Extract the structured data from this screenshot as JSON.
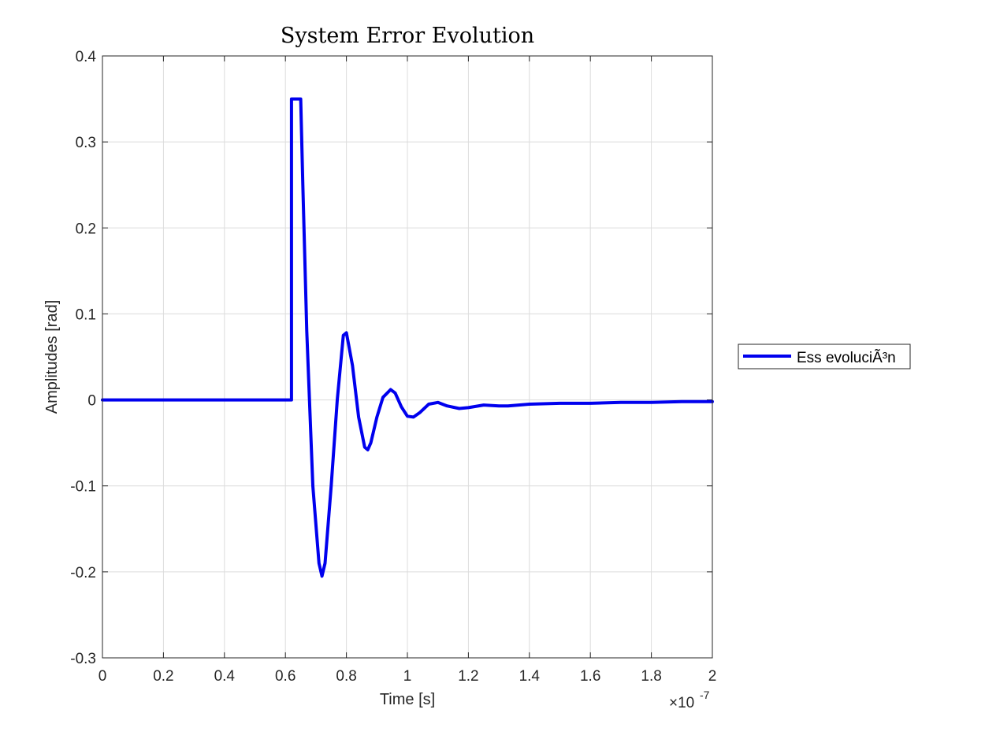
{
  "chart_data": {
    "type": "line",
    "title": "System Error Evolution",
    "xlabel": "Time [s]",
    "ylabel": "Amplitudes [rad]",
    "x_exponent_label": "×10",
    "x_exponent_power": "-7",
    "xlim": [
      0,
      2
    ],
    "ylim": [
      -0.3,
      0.4
    ],
    "grid": true,
    "legend_position": "outside-right",
    "x_ticks": [
      "0",
      "0.2",
      "0.4",
      "0.6",
      "0.8",
      "1",
      "1.2",
      "1.4",
      "1.6",
      "1.8",
      "2"
    ],
    "y_ticks": [
      "0.4",
      "0.3",
      "0.2",
      "0.1",
      "0",
      "-0.1",
      "-0.2",
      "-0.3"
    ],
    "x_tick_values": [
      0,
      0.2,
      0.4,
      0.6,
      0.8,
      1.0,
      1.2,
      1.4,
      1.6,
      1.8,
      2.0
    ],
    "y_tick_values": [
      0.4,
      0.3,
      0.2,
      0.1,
      0,
      -0.1,
      -0.2,
      -0.3
    ],
    "series": [
      {
        "name": "Ess evoluciÃ³n",
        "color": "#0000ee",
        "x": [
          0,
          0.62,
          0.62,
          0.625,
          0.625,
          0.64,
          0.65,
          0.657,
          0.67,
          0.69,
          0.71,
          0.72,
          0.73,
          0.75,
          0.77,
          0.79,
          0.8,
          0.82,
          0.84,
          0.86,
          0.87,
          0.88,
          0.9,
          0.92,
          0.945,
          0.96,
          0.98,
          1.0,
          1.02,
          1.04,
          1.07,
          1.1,
          1.13,
          1.17,
          1.2,
          1.25,
          1.3,
          1.33,
          1.4,
          1.5,
          1.6,
          1.7,
          1.8,
          1.9,
          2.0
        ],
        "y": [
          0,
          0,
          0.35,
          0.35,
          0.35,
          0.35,
          0.35,
          0.25,
          0.08,
          -0.1,
          -0.19,
          -0.205,
          -0.19,
          -0.1,
          0.0,
          0.075,
          0.078,
          0.04,
          -0.02,
          -0.055,
          -0.058,
          -0.05,
          -0.02,
          0.003,
          0.012,
          0.008,
          -0.008,
          -0.019,
          -0.02,
          -0.015,
          -0.005,
          -0.003,
          -0.007,
          -0.01,
          -0.009,
          -0.006,
          -0.007,
          -0.007,
          -0.005,
          -0.004,
          -0.004,
          -0.003,
          -0.003,
          -0.002,
          -0.002
        ]
      }
    ]
  }
}
